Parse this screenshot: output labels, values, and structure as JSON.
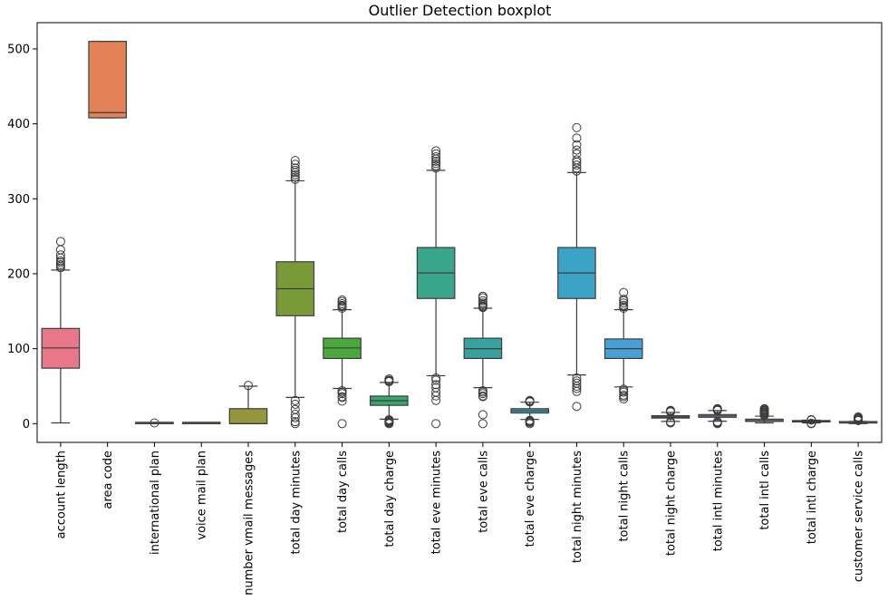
{
  "chart_data": {
    "type": "box",
    "title": "Outlier Detection boxplot",
    "xlabel": "",
    "ylabel": "",
    "ylim": [
      -25,
      535
    ],
    "yticks": [
      0,
      100,
      200,
      300,
      400,
      500
    ],
    "grid": false,
    "series": [
      {
        "name": "account length",
        "color": "#e8778a",
        "min": 1,
        "q1": 74,
        "median": 101,
        "q3": 127,
        "max": 205,
        "outliers": [
          208,
          210,
          212,
          215,
          217,
          221,
          225,
          232,
          243
        ]
      },
      {
        "name": "area code",
        "color": "#e48257",
        "min": 408,
        "q1": 408,
        "median": 415,
        "q3": 510,
        "max": 510,
        "outliers": []
      },
      {
        "name": "international plan",
        "color": "#c79a3a",
        "min": 0,
        "q1": 0,
        "median": 0,
        "q3": 0,
        "max": 0,
        "outliers": [
          1
        ]
      },
      {
        "name": "voice mail plan",
        "color": "#afa03a",
        "min": 0,
        "q1": 0,
        "median": 0,
        "q3": 1,
        "max": 1,
        "outliers": []
      },
      {
        "name": "number vmail messages",
        "color": "#96963c",
        "min": 0,
        "q1": 0,
        "median": 0,
        "q3": 20,
        "max": 50,
        "outliers": [
          51
        ]
      },
      {
        "name": "total day minutes",
        "color": "#7a9a3a",
        "min": 35,
        "q1": 144,
        "median": 180,
        "q3": 216,
        "max": 324,
        "outliers": [
          0,
          2.6,
          7.9,
          12.5,
          18.9,
          25.9,
          30.9,
          326,
          329,
          332,
          335,
          338,
          341,
          346,
          351
        ]
      },
      {
        "name": "total day calls",
        "color": "#4ba83d",
        "min": 47,
        "q1": 87,
        "median": 101,
        "q3": 114,
        "max": 152,
        "outliers": [
          0,
          30,
          35,
          36,
          40,
          42,
          44,
          154,
          156,
          157,
          158,
          160,
          163,
          165
        ]
      },
      {
        "name": "total day charge",
        "color": "#3aa66c",
        "min": 6,
        "q1": 24.4,
        "median": 30.6,
        "q3": 36.8,
        "max": 55,
        "outliers": [
          0,
          1.3,
          2.1,
          3.2,
          4.4,
          5.3,
          56,
          57,
          58,
          59.6
        ]
      },
      {
        "name": "total eve minutes",
        "color": "#38a58c",
        "min": 64,
        "q1": 167,
        "median": 201,
        "q3": 235,
        "max": 338,
        "outliers": [
          0,
          31,
          37,
          42,
          48,
          52,
          58,
          61,
          341,
          344,
          347,
          350,
          353,
          356,
          360,
          364
        ]
      },
      {
        "name": "total eve calls",
        "color": "#36a19f",
        "min": 48,
        "q1": 87,
        "median": 100,
        "q3": 114,
        "max": 154,
        "outliers": [
          0,
          12,
          36,
          37,
          40,
          42,
          44,
          155,
          156,
          157,
          159,
          161,
          164,
          168,
          170
        ]
      },
      {
        "name": "total eve charge",
        "color": "#38a2b2",
        "min": 5.6,
        "q1": 14.2,
        "median": 17.1,
        "q3": 20,
        "max": 28.6,
        "outliers": [
          0,
          1.6,
          2.6,
          3.6,
          4.5,
          29,
          29.9,
          30.6,
          30.9
        ]
      },
      {
        "name": "total night minutes",
        "color": "#3ba3c6",
        "min": 65,
        "q1": 167,
        "median": 201,
        "q3": 235,
        "max": 335,
        "outliers": [
          23,
          43,
          47,
          50,
          54,
          57,
          61,
          337,
          341,
          345,
          349,
          352,
          360,
          365,
          372,
          381,
          395
        ]
      },
      {
        "name": "total night calls",
        "color": "#49a0d6",
        "min": 49,
        "q1": 87,
        "median": 100,
        "q3": 113,
        "max": 152,
        "outliers": [
          33,
          36,
          38,
          42,
          44,
          46,
          154,
          156,
          158,
          161,
          164,
          166,
          175
        ]
      },
      {
        "name": "total night charge",
        "color": "#8d9fe4",
        "min": 3,
        "q1": 7.5,
        "median": 9.05,
        "q3": 10.6,
        "max": 15,
        "outliers": [
          1.0,
          1.9,
          2.4,
          15.7,
          16.4,
          17.2,
          17.8
        ]
      },
      {
        "name": "total intl minutes",
        "color": "#a79be6",
        "min": 3.3,
        "q1": 8.5,
        "median": 10.3,
        "q3": 12.1,
        "max": 17.5,
        "outliers": [
          0,
          1.1,
          1.3,
          2.0,
          2.5,
          17.6,
          18.2,
          18.9,
          19.7,
          20
        ]
      },
      {
        "name": "total intl calls",
        "color": "#c796e6",
        "min": 1,
        "q1": 3,
        "median": 4,
        "q3": 6,
        "max": 10,
        "outliers": [
          11,
          12,
          13,
          14,
          15,
          16,
          17,
          18,
          19,
          20
        ]
      },
      {
        "name": "total intl charge",
        "color": "#de89d7",
        "min": 0.9,
        "q1": 2.3,
        "median": 2.78,
        "q3": 3.27,
        "max": 4.7,
        "outliers": [
          0,
          0.3,
          0.5,
          4.8,
          5.1,
          5.4
        ]
      },
      {
        "name": "customer service calls",
        "color": "#e488b6",
        "min": 0,
        "q1": 1,
        "median": 1,
        "q3": 2,
        "max": 3,
        "outliers": [
          4,
          5,
          6,
          7,
          8,
          9
        ]
      }
    ]
  }
}
